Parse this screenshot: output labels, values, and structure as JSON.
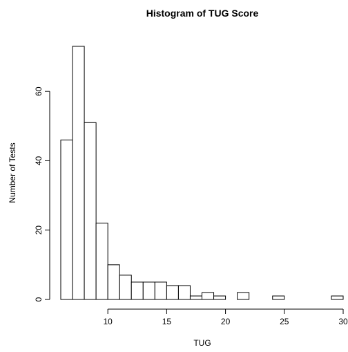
{
  "chart_data": {
    "type": "bar",
    "title": "Histogram of TUG Score",
    "xlabel": "TUG",
    "ylabel": "Number of Tests",
    "bin_edges": [
      6,
      7,
      8,
      9,
      10,
      11,
      12,
      13,
      14,
      15,
      16,
      17,
      18,
      19,
      20,
      21,
      22,
      23,
      24,
      25,
      26,
      27,
      28,
      29,
      30
    ],
    "values": [
      46,
      73,
      51,
      22,
      10,
      7,
      5,
      5,
      5,
      4,
      4,
      1,
      2,
      1,
      0,
      2,
      0,
      0,
      1,
      0,
      0,
      0,
      0,
      1
    ],
    "x_ticks": [
      10,
      15,
      20,
      25,
      30
    ],
    "y_ticks": [
      0,
      20,
      40,
      60
    ],
    "xlim": [
      6,
      30
    ],
    "ylim": [
      0,
      73
    ],
    "grid": false,
    "legend": "none"
  }
}
